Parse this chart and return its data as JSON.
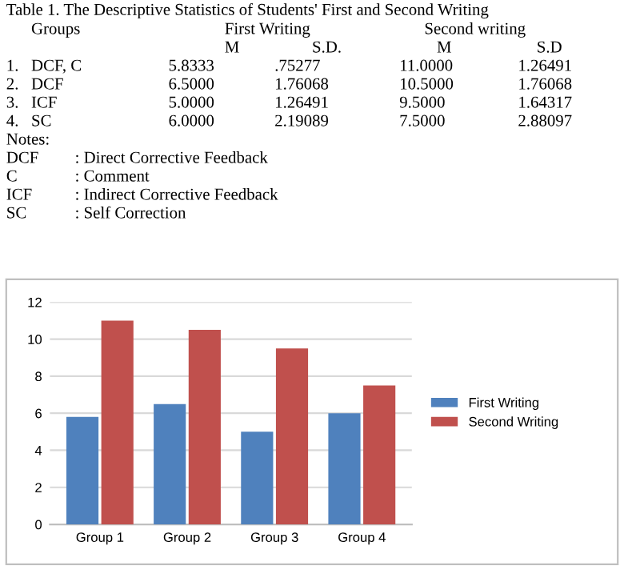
{
  "chart_data": {
    "type": "bar",
    "title": "Table 1. The Descriptive Statistics of Students' First and Second Writing",
    "annotations": [
      "Groups  First Writing  Second writing",
      "M  S.D.  M  S.D",
      "1.  DCF, C  5.8333  .75277  11.0000  1.26491",
      "2.  DCF  6.5000  1.76068  10.5000  1.76068",
      "3.  ICF  5.0000  1.26491  9.5000  1.64317",
      "4.  SC  6.0000  2.19089  7.5000  2.88097",
      "Notes:",
      "DCF  : Direct Corrective Feedback",
      "C  : Comment",
      "ICF  : Indirect Corrective Feedback",
      "SC  : Self Correction"
    ],
    "categories": [
      "Group 1",
      "Group 2",
      "Group 3",
      "Group 4"
    ],
    "series": [
      {
        "name": "First Writing",
        "color": "#4f81bd",
        "values": [
          5.8,
          6.5,
          5.0,
          6.0
        ]
      },
      {
        "name": "Second Writing",
        "color": "#c0504d",
        "values": [
          11.0,
          10.5,
          9.5,
          7.5
        ]
      }
    ],
    "ylim": [
      0,
      12
    ],
    "yticks": [
      0,
      2,
      4,
      6,
      8,
      10,
      12
    ],
    "grid": "y",
    "legend": "right"
  }
}
